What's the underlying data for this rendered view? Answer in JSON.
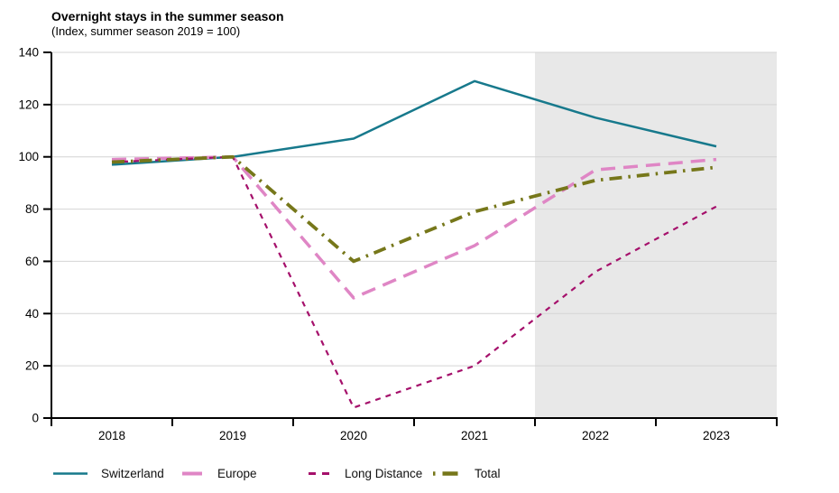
{
  "title": "Overnight stays in the summer season",
  "subtitle": "(Index, summer season 2019 = 100)",
  "colors": {
    "switzerland": "#17798C",
    "europe": "#DF86C5",
    "long_distance": "#A5106B",
    "total": "#76771A",
    "forecast_band": "#E8E8E8",
    "gridline": "#D4D4D4",
    "axis": "#000000"
  },
  "chart_data": {
    "type": "line",
    "title": "Overnight stays in the summer season",
    "subtitle": "(Index, summer season 2019 = 100)",
    "categories": [
      "2018",
      "2019",
      "2020",
      "2021",
      "2022",
      "2023"
    ],
    "series": [
      {
        "name": "Switzerland",
        "color_key": "switzerland",
        "style": "solid",
        "values": [
          97,
          100,
          107,
          129,
          115,
          104
        ]
      },
      {
        "name": "Europe",
        "color_key": "europe",
        "style": "long-dash",
        "values": [
          99,
          100,
          46,
          66,
          95,
          99
        ]
      },
      {
        "name": "Long Distance",
        "color_key": "long_distance",
        "style": "short-dash",
        "values": [
          98,
          100,
          4,
          20,
          56,
          81
        ]
      },
      {
        "name": "Total",
        "color_key": "total",
        "style": "dash-dot",
        "values": [
          98,
          100,
          60,
          79,
          91,
          96
        ]
      }
    ],
    "xlabel": "",
    "ylabel": "",
    "ylim": [
      0,
      140
    ],
    "ytick_step": 20,
    "yticks": [
      0,
      20,
      40,
      60,
      80,
      100,
      120,
      140
    ],
    "forecast_band_x": [
      2021.5,
      2023.5
    ],
    "grid": true,
    "legend_position": "bottom"
  }
}
